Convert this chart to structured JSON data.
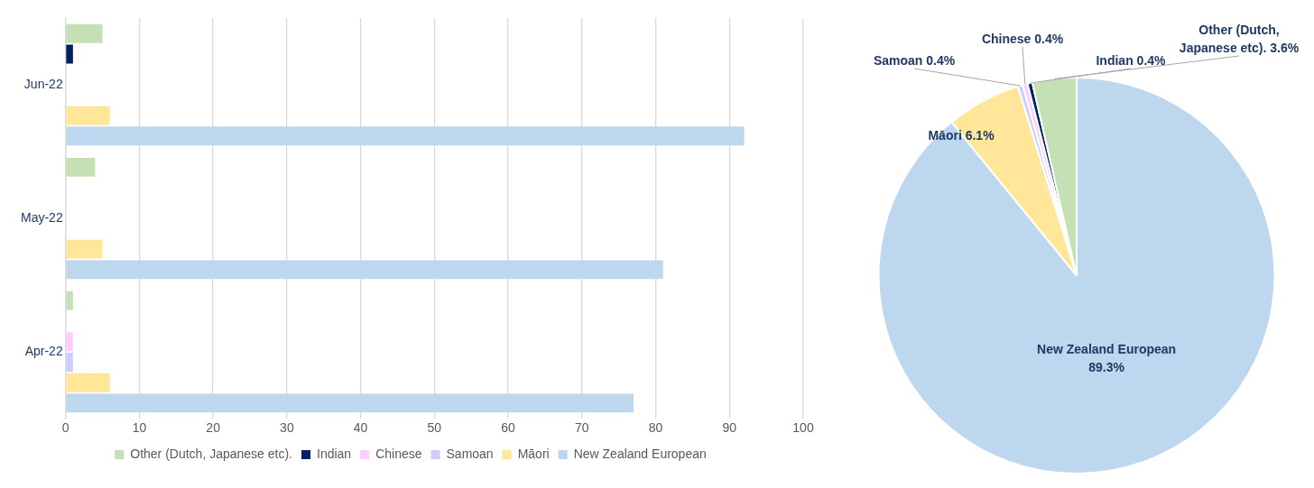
{
  "chart_data": [
    {
      "type": "bar",
      "orientation": "horizontal",
      "categories": [
        "Jun-22",
        "May-22",
        "Apr-22"
      ],
      "series": [
        {
          "name": "Other (Dutch, Japanese etc).",
          "color": "#c5e0b4",
          "values": [
            5,
            4,
            1
          ]
        },
        {
          "name": "Indian",
          "color": "#002060",
          "values": [
            1,
            0,
            0
          ]
        },
        {
          "name": "Chinese",
          "color": "#ffccff",
          "values": [
            0,
            0,
            1
          ]
        },
        {
          "name": "Samoan",
          "color": "#ccccff",
          "values": [
            0,
            0,
            1
          ]
        },
        {
          "name": "Māori",
          "color": "#ffe699",
          "values": [
            6,
            5,
            6
          ]
        },
        {
          "name": "New Zealand European",
          "color": "#bdd7ee",
          "values": [
            92,
            81,
            77
          ]
        }
      ],
      "xlim": [
        0,
        100
      ],
      "xticks": [
        0,
        10,
        20,
        30,
        40,
        50,
        60,
        70,
        80,
        90,
        100
      ],
      "grid": "x",
      "legend": "bottom"
    },
    {
      "type": "pie",
      "categories": [
        "New Zealand European",
        "Māori",
        "Samoan",
        "Chinese",
        "Indian",
        "Other (Dutch, Japanese etc)."
      ],
      "values": [
        89.3,
        6.1,
        0.4,
        0.4,
        0.4,
        3.6
      ],
      "colors": [
        "#bdd7ee",
        "#ffe699",
        "#ccccff",
        "#ffccff",
        "#002060",
        "#c5e0b4"
      ],
      "value_labels": [
        "89.3%",
        "6.1%",
        "0.4%",
        "0.4%",
        "0.4%",
        "3.6%"
      ],
      "legend": false
    }
  ]
}
